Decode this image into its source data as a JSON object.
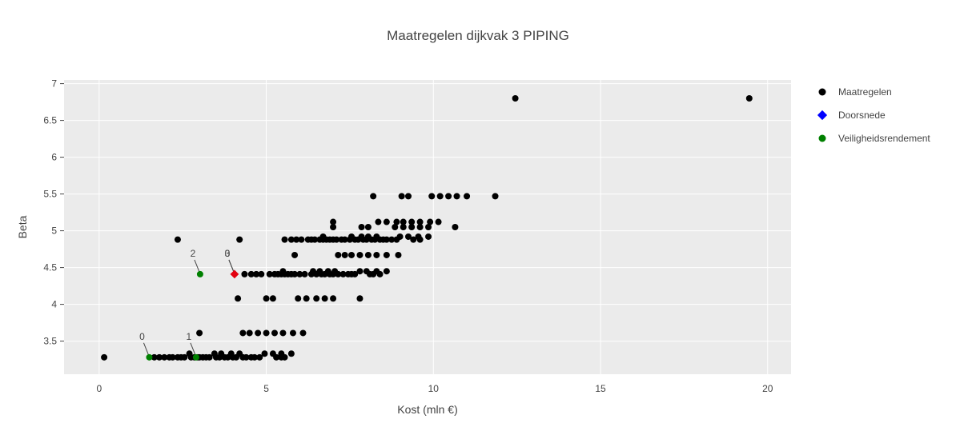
{
  "chart_data": {
    "type": "scatter",
    "title": "Maatregelen dijkvak 3 PIPING",
    "xlabel": "Kost (mln €)",
    "ylabel": "Beta",
    "xlim": [
      -1.05,
      20.7
    ],
    "ylim": [
      3.05,
      7.05
    ],
    "xticks": [
      0,
      5,
      10,
      15,
      20
    ],
    "yticks": [
      3.5,
      4,
      4.5,
      5,
      5.5,
      6,
      6.5,
      7
    ],
    "ytick_labels": [
      "3.5",
      "4",
      "4.5",
      "5",
      "5.5",
      "6",
      "6.5",
      "7"
    ],
    "grid": true,
    "plot_background": "#ebebeb",
    "legend_position": "right",
    "series": [
      {
        "name": "Maatregelen",
        "marker": "circle",
        "color": "#000000",
        "points": [
          [
            0.15,
            3.28
          ],
          [
            1.65,
            3.28
          ],
          [
            1.8,
            3.28
          ],
          [
            1.95,
            3.28
          ],
          [
            2.1,
            3.28
          ],
          [
            2.2,
            3.28
          ],
          [
            2.35,
            3.28
          ],
          [
            2.45,
            3.28
          ],
          [
            2.55,
            3.28
          ],
          [
            2.7,
            3.33
          ],
          [
            2.75,
            3.28
          ],
          [
            2.85,
            3.28
          ],
          [
            2.95,
            3.28
          ],
          [
            3.0,
            3.28
          ],
          [
            3.1,
            3.28
          ],
          [
            3.2,
            3.28
          ],
          [
            3.3,
            3.28
          ],
          [
            3.45,
            3.33
          ],
          [
            3.5,
            3.28
          ],
          [
            3.6,
            3.28
          ],
          [
            3.65,
            3.33
          ],
          [
            3.75,
            3.28
          ],
          [
            3.85,
            3.28
          ],
          [
            3.95,
            3.33
          ],
          [
            4.0,
            3.28
          ],
          [
            4.1,
            3.28
          ],
          [
            4.2,
            3.33
          ],
          [
            4.3,
            3.28
          ],
          [
            4.4,
            3.28
          ],
          [
            4.55,
            3.28
          ],
          [
            4.65,
            3.28
          ],
          [
            4.8,
            3.28
          ],
          [
            4.95,
            3.33
          ],
          [
            5.2,
            3.33
          ],
          [
            5.3,
            3.28
          ],
          [
            5.45,
            3.28
          ],
          [
            5.45,
            3.33
          ],
          [
            5.55,
            3.28
          ],
          [
            5.75,
            3.33
          ],
          [
            3.0,
            3.61
          ],
          [
            4.3,
            3.61
          ],
          [
            4.5,
            3.61
          ],
          [
            4.75,
            3.61
          ],
          [
            5.0,
            3.61
          ],
          [
            5.25,
            3.61
          ],
          [
            5.5,
            3.61
          ],
          [
            5.8,
            3.61
          ],
          [
            6.1,
            3.61
          ],
          [
            4.15,
            4.08
          ],
          [
            5.0,
            4.08
          ],
          [
            5.2,
            4.08
          ],
          [
            5.95,
            4.08
          ],
          [
            6.2,
            4.08
          ],
          [
            6.5,
            4.08
          ],
          [
            6.75,
            4.08
          ],
          [
            7.0,
            4.08
          ],
          [
            7.8,
            4.08
          ],
          [
            4.35,
            4.41
          ],
          [
            4.55,
            4.41
          ],
          [
            4.7,
            4.41
          ],
          [
            4.85,
            4.41
          ],
          [
            5.1,
            4.41
          ],
          [
            5.25,
            4.41
          ],
          [
            5.35,
            4.41
          ],
          [
            5.45,
            4.41
          ],
          [
            5.55,
            4.41
          ],
          [
            5.5,
            4.45
          ],
          [
            5.65,
            4.41
          ],
          [
            5.75,
            4.41
          ],
          [
            5.85,
            4.41
          ],
          [
            6.0,
            4.41
          ],
          [
            6.15,
            4.41
          ],
          [
            6.35,
            4.41
          ],
          [
            6.4,
            4.45
          ],
          [
            6.5,
            4.41
          ],
          [
            6.6,
            4.45
          ],
          [
            6.65,
            4.41
          ],
          [
            6.75,
            4.41
          ],
          [
            6.85,
            4.45
          ],
          [
            6.9,
            4.41
          ],
          [
            7.0,
            4.41
          ],
          [
            7.05,
            4.45
          ],
          [
            7.15,
            4.41
          ],
          [
            7.3,
            4.41
          ],
          [
            7.45,
            4.41
          ],
          [
            7.55,
            4.41
          ],
          [
            7.65,
            4.41
          ],
          [
            7.8,
            4.45
          ],
          [
            8.0,
            4.45
          ],
          [
            8.1,
            4.41
          ],
          [
            8.2,
            4.41
          ],
          [
            8.3,
            4.45
          ],
          [
            8.4,
            4.41
          ],
          [
            8.6,
            4.45
          ],
          [
            5.85,
            4.67
          ],
          [
            7.15,
            4.67
          ],
          [
            7.35,
            4.67
          ],
          [
            7.55,
            4.67
          ],
          [
            7.8,
            4.67
          ],
          [
            8.05,
            4.67
          ],
          [
            8.3,
            4.67
          ],
          [
            8.6,
            4.67
          ],
          [
            8.95,
            4.67
          ],
          [
            2.35,
            4.88
          ],
          [
            4.2,
            4.88
          ],
          [
            5.55,
            4.88
          ],
          [
            5.75,
            4.88
          ],
          [
            5.9,
            4.88
          ],
          [
            6.05,
            4.88
          ],
          [
            6.25,
            4.88
          ],
          [
            6.35,
            4.88
          ],
          [
            6.45,
            4.88
          ],
          [
            6.6,
            4.88
          ],
          [
            6.7,
            4.88
          ],
          [
            6.7,
            4.92
          ],
          [
            6.8,
            4.88
          ],
          [
            6.9,
            4.88
          ],
          [
            7.0,
            4.88
          ],
          [
            7.1,
            4.88
          ],
          [
            7.25,
            4.88
          ],
          [
            7.35,
            4.88
          ],
          [
            7.5,
            4.88
          ],
          [
            7.55,
            4.92
          ],
          [
            7.65,
            4.88
          ],
          [
            7.75,
            4.88
          ],
          [
            7.85,
            4.92
          ],
          [
            7.9,
            4.88
          ],
          [
            8.0,
            4.88
          ],
          [
            8.05,
            4.92
          ],
          [
            8.15,
            4.88
          ],
          [
            8.25,
            4.88
          ],
          [
            8.3,
            4.92
          ],
          [
            8.4,
            4.88
          ],
          [
            8.5,
            4.88
          ],
          [
            8.6,
            4.88
          ],
          [
            8.75,
            4.88
          ],
          [
            8.9,
            4.88
          ],
          [
            9.0,
            4.92
          ],
          [
            9.25,
            4.92
          ],
          [
            9.4,
            4.88
          ],
          [
            9.55,
            4.92
          ],
          [
            9.6,
            4.88
          ],
          [
            9.85,
            4.92
          ],
          [
            7.0,
            5.05
          ],
          [
            7.0,
            5.12
          ],
          [
            7.85,
            5.05
          ],
          [
            8.05,
            5.05
          ],
          [
            8.35,
            5.12
          ],
          [
            8.6,
            5.12
          ],
          [
            8.85,
            5.05
          ],
          [
            8.9,
            5.12
          ],
          [
            9.1,
            5.05
          ],
          [
            9.1,
            5.12
          ],
          [
            9.35,
            5.05
          ],
          [
            9.35,
            5.12
          ],
          [
            9.6,
            5.05
          ],
          [
            9.6,
            5.12
          ],
          [
            9.85,
            5.05
          ],
          [
            9.9,
            5.12
          ],
          [
            10.15,
            5.12
          ],
          [
            10.65,
            5.05
          ],
          [
            8.2,
            5.47
          ],
          [
            9.05,
            5.47
          ],
          [
            9.25,
            5.47
          ],
          [
            9.95,
            5.47
          ],
          [
            10.2,
            5.47
          ],
          [
            10.45,
            5.47
          ],
          [
            10.7,
            5.47
          ],
          [
            11.0,
            5.47
          ],
          [
            11.85,
            5.47
          ],
          [
            12.45,
            6.8
          ],
          [
            19.45,
            6.8
          ]
        ]
      },
      {
        "name": "Doorsnede",
        "marker": "diamond",
        "color": "#0000ff",
        "points": []
      },
      {
        "name": "Veiligheidsrendement",
        "marker": "circle",
        "color": "#008000",
        "points": [
          [
            1.5,
            3.28
          ],
          [
            2.9,
            3.28
          ],
          [
            3.02,
            4.41
          ]
        ]
      },
      {
        "name": "",
        "marker": "diamond",
        "color": "#e3000f",
        "points": [
          [
            4.05,
            4.41
          ]
        ]
      }
    ],
    "annotations": [
      {
        "text": "0",
        "x": 1.5,
        "y": 3.28
      },
      {
        "text": "1",
        "x": 2.9,
        "y": 3.28
      },
      {
        "text": "2",
        "x": 3.02,
        "y": 4.41
      },
      {
        "text": "3",
        "x": 4.05,
        "y": 4.41
      },
      {
        "text": "0",
        "x": 4.05,
        "y": 4.41
      }
    ]
  }
}
